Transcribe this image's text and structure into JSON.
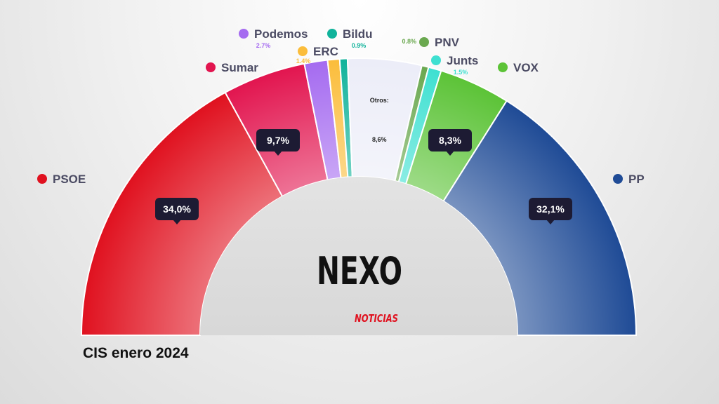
{
  "chart_data": {
    "type": "pie",
    "subtype": "semicircle",
    "caption": "CIS enero 2024",
    "slices": [
      {
        "key": "psoe",
        "name": "PSOE",
        "value": 34.0,
        "callout": "34,0%",
        "color": "#e0111f"
      },
      {
        "key": "sumar",
        "name": "Sumar",
        "value": 9.7,
        "callout": "9,7%",
        "color": "#e2154f"
      },
      {
        "key": "podemos",
        "name": "Podemos",
        "value": 2.7,
        "pct_label": "2.7%",
        "color": "#a56bf0"
      },
      {
        "key": "erc",
        "name": "ERC",
        "value": 1.4,
        "pct_label": "1.4%",
        "color": "#fbbd3b"
      },
      {
        "key": "bildu",
        "name": "Bildu",
        "value": 0.9,
        "pct_label": "0.9%",
        "color": "#10b39b"
      },
      {
        "key": "otros",
        "name": "Otros:",
        "value": 8.6,
        "callout": "8,6%",
        "color": "#ecedf8"
      },
      {
        "key": "pnv",
        "name": "PNV",
        "value": 0.8,
        "pct_label": "0.8%",
        "color": "#6aa84f"
      },
      {
        "key": "junts",
        "name": "Junts",
        "value": 1.5,
        "pct_label": "1.5%",
        "color": "#3ee0d1"
      },
      {
        "key": "vox",
        "name": "VOX",
        "value": 8.3,
        "callout": "8,3%",
        "color": "#5cc337"
      },
      {
        "key": "pp",
        "name": "PP",
        "value": 32.1,
        "callout": "32,1%",
        "color": "#1f4b96"
      }
    ]
  },
  "brand": {
    "name": "NEXO",
    "sub": "NOTICIAS"
  }
}
